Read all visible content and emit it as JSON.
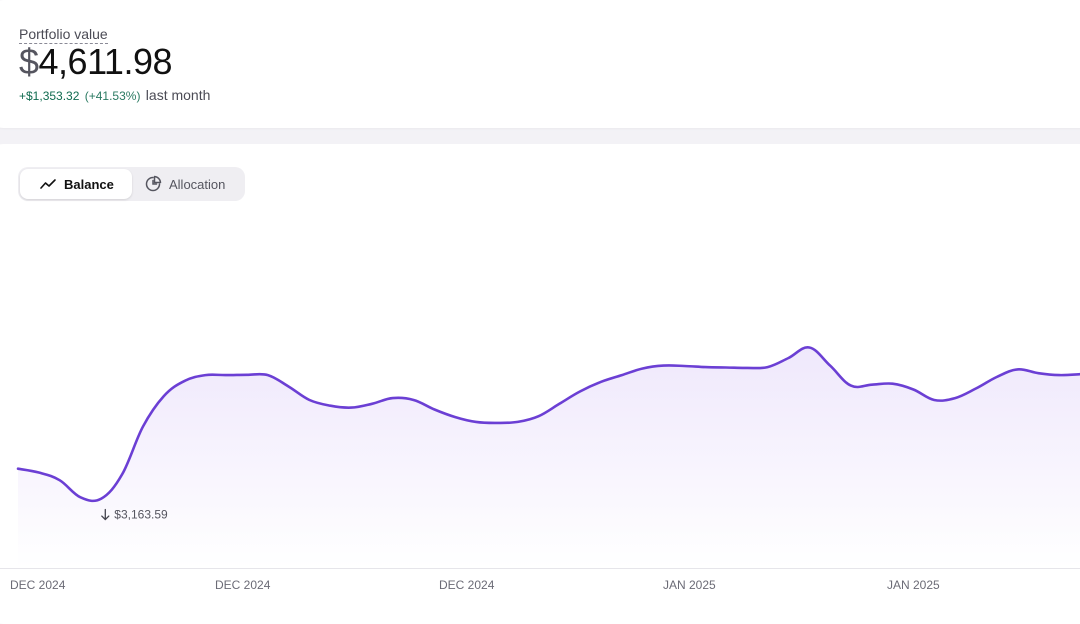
{
  "portfolio": {
    "label": "Portfolio value",
    "value_currency": "$",
    "value_amount": "4,611.98",
    "change_amount": "+$1,353.32",
    "change_percent": "(+41.53%)",
    "change_period": "last month"
  },
  "tabs": {
    "items": [
      {
        "label": "Balance",
        "icon": "line-chart-icon",
        "active": true
      },
      {
        "label": "Allocation",
        "icon": "pie-chart-icon",
        "active": false
      }
    ]
  },
  "colors": {
    "line": "#6b3fd4",
    "positive": "#0f6b4f",
    "fill_top": "#efe8fc"
  },
  "chart_data": {
    "type": "area",
    "x_tick_labels": [
      "DEC 2024",
      "DEC 2024",
      "DEC 2024",
      "JAN 2025",
      "JAN 2025"
    ],
    "min_marker": {
      "label": "$3,163.59",
      "direction": "down"
    },
    "values": [
      3320,
      3300,
      3260,
      3170,
      3163.59,
      3290,
      3540,
      3700,
      3780,
      3810,
      3810,
      3812,
      3810,
      3750,
      3680,
      3650,
      3640,
      3660,
      3690,
      3680,
      3630,
      3590,
      3565,
      3560,
      3565,
      3595,
      3660,
      3725,
      3775,
      3810,
      3845,
      3860,
      3858,
      3852,
      3850,
      3848,
      3852,
      3900,
      3955,
      3860,
      3755,
      3760,
      3765,
      3735,
      3680,
      3690,
      3740,
      3800,
      3840,
      3820,
      3810,
      3815
    ],
    "y_range": [
      2800,
      4611.98
    ],
    "grid": false,
    "legend": "none"
  }
}
